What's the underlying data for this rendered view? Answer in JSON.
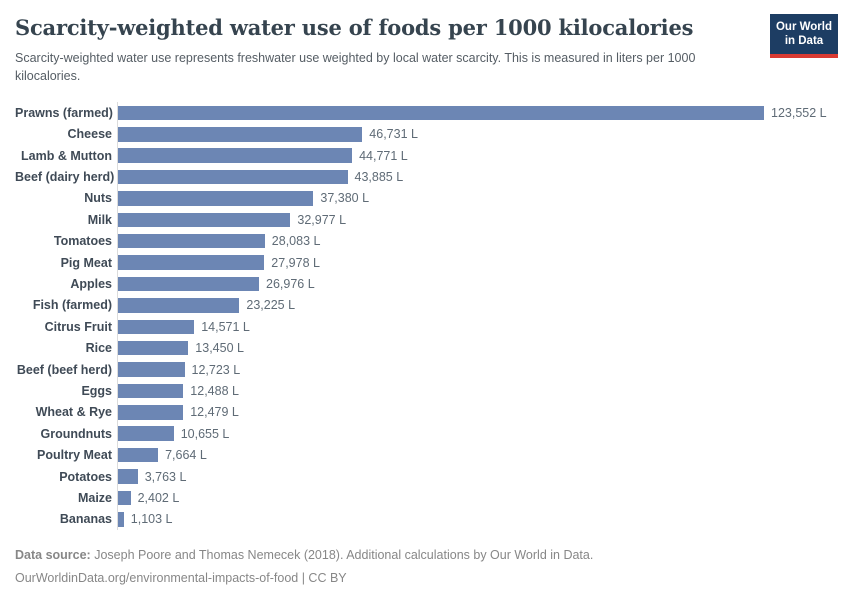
{
  "header": {
    "title": "Scarcity-weighted water use of foods per 1000 kilocalories",
    "subtitle": "Scarcity-weighted water use represents freshwater use weighted by local water scarcity. This is measured in liters per 1000 kilocalories.",
    "logo": {
      "line1": "Our World",
      "line2": "in Data",
      "bg_color": "#1d3d63",
      "accent_color": "#d93a32"
    }
  },
  "chart_data": {
    "type": "bar",
    "orientation": "horizontal",
    "title": "Scarcity-weighted water use of foods per 1000 kilocalories",
    "unit": "liters per 1000 kilocalories",
    "categories": [
      "Prawns (farmed)",
      "Cheese",
      "Lamb & Mutton",
      "Beef (dairy herd)",
      "Nuts",
      "Milk",
      "Tomatoes",
      "Pig Meat",
      "Apples",
      "Fish (farmed)",
      "Citrus Fruit",
      "Rice",
      "Beef (beef herd)",
      "Eggs",
      "Wheat & Rye",
      "Groundnuts",
      "Poultry Meat",
      "Potatoes",
      "Maize",
      "Bananas"
    ],
    "values": [
      123552,
      46731,
      44771,
      43885,
      37380,
      32977,
      28083,
      27978,
      26976,
      23225,
      14571,
      13450,
      12723,
      12488,
      12479,
      10655,
      7664,
      3763,
      2402,
      1103
    ],
    "value_labels": [
      "123,552 L",
      "46,731 L",
      "44,771 L",
      "43,885 L",
      "37,380 L",
      "32,977 L",
      "28,083 L",
      "27,978 L",
      "26,976 L",
      "23,225 L",
      "14,571 L",
      "13,450 L",
      "12,723 L",
      "12,488 L",
      "12,479 L",
      "10,655 L",
      "7,664 L",
      "3,763 L",
      "2,402 L",
      "1,103 L"
    ],
    "bar_color": "#6c86b4",
    "axis_line_color": "#dcdcdc",
    "xlim": [
      0,
      123552
    ],
    "grid": false,
    "legend": "none"
  },
  "footer": {
    "datasource_label": "Data source:",
    "datasource_text": " Joseph Poore and Thomas Nemecek (2018). Additional calculations by Our World in Data.",
    "citation_line": "OurWorldinData.org/environmental-impacts-of-food | CC BY"
  }
}
